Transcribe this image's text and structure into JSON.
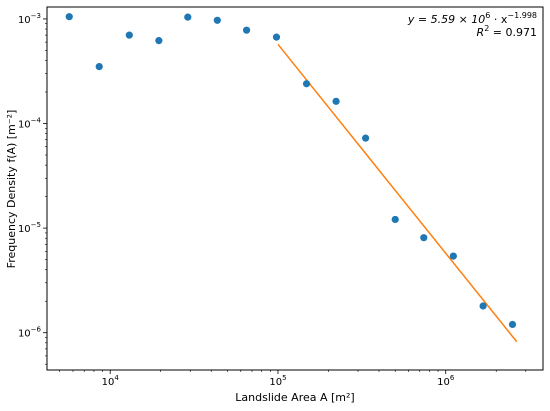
{
  "chart_data": {
    "type": "scatter",
    "title": "",
    "xlabel": "Landslide Area A [m²]",
    "ylabel": "Frequency Density f(A) [m⁻²]",
    "xscale": "log",
    "yscale": "log",
    "xlim": [
      4200,
      3800000
    ],
    "ylim": [
      4.4e-07,
      0.0013
    ],
    "x_ticks": [
      {
        "value": 10000,
        "base": "10",
        "exp": "4"
      },
      {
        "value": 100000,
        "base": "10",
        "exp": "5"
      },
      {
        "value": 1000000,
        "base": "10",
        "exp": "6"
      }
    ],
    "y_ticks": [
      {
        "value": 1e-06,
        "base": "10",
        "exp": "−6"
      },
      {
        "value": 1e-05,
        "base": "10",
        "exp": "−5"
      },
      {
        "value": 0.0001,
        "base": "10",
        "exp": "−4"
      },
      {
        "value": 0.001,
        "base": "10",
        "exp": "−3"
      }
    ],
    "grid": false,
    "series": [
      {
        "color": "#1f77b4",
        "x": [
          5700,
          8600,
          13000,
          19500,
          29000,
          43500,
          65000,
          98000,
          148000,
          222000,
          333000,
          500000,
          740000,
          1110000,
          1670000,
          2500000
        ],
        "y": [
          0.00105,
          0.00035,
          0.0007,
          0.00062,
          0.00104,
          0.00097,
          0.00078,
          0.00067,
          0.00024,
          0.000163,
          7.25e-05,
          1.21e-05,
          8.1e-06,
          5.4e-06,
          1.8e-06,
          1.2e-06
        ]
      }
    ],
    "fit": {
      "color": "#ff7f0e",
      "coefficient": 5590000,
      "exponent": -1.998,
      "x_range": [
        100000,
        2650000
      ]
    },
    "annotations": {
      "equation": {
        "lhs": "y = 5.59 × 10",
        "coef_exp": "6",
        "mid": " · x",
        "x_exp": "−1.998"
      },
      "r2": {
        "lhs": "R",
        "sup": "2",
        "rhs": " = 0.971"
      }
    }
  }
}
